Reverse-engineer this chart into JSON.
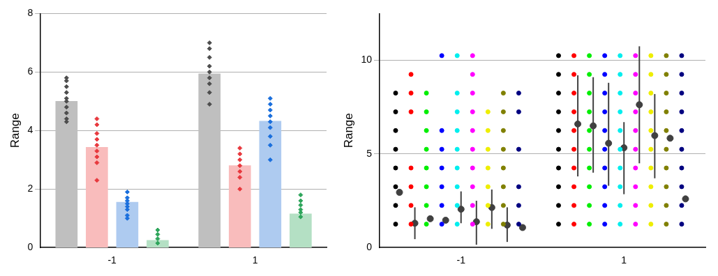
{
  "chart_data": [
    {
      "type": "bar",
      "ylabel": "Range",
      "categories": [
        "-1",
        "1"
      ],
      "ylim": [
        0,
        8
      ],
      "yticks": [
        0,
        2,
        4,
        6,
        8
      ],
      "grid": "y",
      "legend": false,
      "marker": "diamond",
      "series": [
        {
          "color": "#bfbfbf",
          "values": [
            5.0,
            5.94
          ]
        },
        {
          "color": "#f9bcbc",
          "values": [
            3.43,
            2.8
          ]
        },
        {
          "color": "#aecbf0",
          "values": [
            1.55,
            4.32
          ]
        },
        {
          "color": "#b4e0c4",
          "values": [
            0.25,
            1.15
          ]
        },
        {
          "type": "scatter",
          "color": "#4d4d4d",
          "x": [
            "-1",
            "-1",
            "-1",
            "-1",
            "-1",
            "-1",
            "-1",
            "-1",
            "-1",
            "-1",
            "1",
            "1",
            "1",
            "1",
            "1",
            "1",
            "1",
            "1",
            "1"
          ],
          "values": [
            5.8,
            5.7,
            5.5,
            5.3,
            5.1,
            5.0,
            4.8,
            4.6,
            4.4,
            4.3,
            7.0,
            6.8,
            6.5,
            6.2,
            6.0,
            5.8,
            5.6,
            5.3,
            4.9
          ]
        },
        {
          "type": "scatter",
          "color": "#e8383d",
          "x": [
            "-1",
            "-1",
            "-1",
            "-1",
            "-1",
            "-1",
            "-1",
            "-1",
            "-1",
            "1",
            "1",
            "1",
            "1",
            "1",
            "1",
            "1"
          ],
          "values": [
            4.4,
            4.2,
            3.9,
            3.7,
            3.5,
            3.3,
            3.1,
            2.9,
            2.3,
            3.4,
            3.2,
            3.0,
            2.8,
            2.6,
            2.4,
            2.0
          ]
        },
        {
          "type": "scatter",
          "color": "#1a6fdd",
          "x": [
            "-1",
            "-1",
            "-1",
            "-1",
            "-1",
            "-1",
            "-1",
            "-1",
            "1",
            "1",
            "1",
            "1",
            "1",
            "1",
            "1",
            "1",
            "1"
          ],
          "values": [
            1.9,
            1.7,
            1.6,
            1.5,
            1.4,
            1.3,
            1.1,
            1.0,
            5.1,
            4.9,
            4.7,
            4.5,
            4.3,
            4.1,
            3.8,
            3.5,
            3.0
          ]
        },
        {
          "type": "scatter",
          "color": "#2ea55b",
          "x": [
            "-1",
            "-1",
            "-1",
            "-1",
            "1",
            "1",
            "1",
            "1",
            "1",
            "1"
          ],
          "values": [
            0.6,
            0.45,
            0.3,
            0.15,
            1.8,
            1.6,
            1.45,
            1.3,
            1.2,
            1.05
          ]
        }
      ]
    },
    {
      "type": "scatter",
      "ylabel": "Range",
      "categories": [
        "-1",
        "1"
      ],
      "ylim": [
        0,
        12.5
      ],
      "yticks": [
        0,
        5,
        10
      ],
      "grid": "y",
      "legend": false,
      "marker": "circle",
      "series": [
        {
          "color": "#000000",
          "x": [
            "-1",
            "-1",
            "-1",
            "-1",
            "-1",
            "-1",
            "-1",
            "-1",
            "1",
            "1",
            "1",
            "1",
            "1",
            "1",
            "1",
            "1",
            "1",
            "1"
          ],
          "values": [
            1.25,
            2.25,
            3.25,
            4.25,
            5.25,
            6.25,
            7.25,
            8.25,
            1.25,
            2.25,
            3.25,
            4.25,
            5.25,
            6.25,
            7.25,
            8.25,
            9.25,
            10.25
          ]
        },
        {
          "color": "#ff0000",
          "x": [
            "-1",
            "-1",
            "-1",
            "-1",
            "-1",
            "-1",
            "-1",
            "1",
            "1",
            "1",
            "1",
            "1",
            "1",
            "1",
            "1",
            "1",
            "1"
          ],
          "values": [
            1.25,
            2.25,
            3.25,
            4.25,
            7.25,
            8.25,
            9.25,
            1.25,
            2.25,
            3.25,
            4.25,
            5.25,
            6.25,
            7.25,
            8.25,
            9.25,
            10.25
          ]
        },
        {
          "color": "#00ee00",
          "x": [
            "-1",
            "-1",
            "-1",
            "-1",
            "-1",
            "-1",
            "-1",
            "-1",
            "1",
            "1",
            "1",
            "1",
            "1",
            "1",
            "1",
            "1",
            "1",
            "1"
          ],
          "values": [
            1.25,
            2.25,
            3.25,
            4.25,
            5.25,
            6.25,
            7.25,
            8.25,
            1.25,
            2.25,
            3.25,
            4.25,
            5.25,
            6.25,
            7.25,
            8.25,
            9.25,
            10.25
          ]
        },
        {
          "color": "#0000ff",
          "x": [
            "-1",
            "-1",
            "-1",
            "-1",
            "-1",
            "-1",
            "-1",
            "1",
            "1",
            "1",
            "1",
            "1",
            "1",
            "1",
            "1",
            "1",
            "1"
          ],
          "values": [
            1.25,
            2.25,
            3.25,
            4.25,
            5.25,
            6.25,
            10.25,
            1.25,
            2.25,
            3.25,
            4.25,
            5.25,
            6.25,
            7.25,
            8.25,
            9.25,
            10.25
          ]
        },
        {
          "color": "#00eeee",
          "x": [
            "-1",
            "-1",
            "-1",
            "-1",
            "-1",
            "-1",
            "-1",
            "-1",
            "-1",
            "1",
            "1",
            "1",
            "1",
            "1",
            "1",
            "1",
            "1",
            "1",
            "1"
          ],
          "values": [
            1.25,
            2.25,
            3.25,
            4.25,
            5.25,
            6.25,
            7.25,
            8.25,
            10.25,
            1.25,
            2.25,
            3.25,
            4.25,
            5.25,
            6.25,
            7.25,
            8.25,
            9.25,
            10.25
          ]
        },
        {
          "color": "#ff00ff",
          "x": [
            "-1",
            "-1",
            "-1",
            "-1",
            "-1",
            "-1",
            "-1",
            "-1",
            "-1",
            "-1",
            "1",
            "1",
            "1",
            "1",
            "1",
            "1",
            "1",
            "1",
            "1",
            "1"
          ],
          "values": [
            1.25,
            2.25,
            3.25,
            4.25,
            5.25,
            6.25,
            7.25,
            8.25,
            9.25,
            10.25,
            1.25,
            2.25,
            3.25,
            4.25,
            5.25,
            6.25,
            7.25,
            8.25,
            9.25,
            10.25
          ]
        },
        {
          "color": "#eeee00",
          "x": [
            "-1",
            "-1",
            "-1",
            "-1",
            "-1",
            "-1",
            "-1",
            "1",
            "1",
            "1",
            "1",
            "1",
            "1",
            "1",
            "1",
            "1",
            "1"
          ],
          "values": [
            1.25,
            2.25,
            3.25,
            4.25,
            5.25,
            6.25,
            7.25,
            1.25,
            2.25,
            3.25,
            4.25,
            5.25,
            6.25,
            7.25,
            8.25,
            9.25,
            10.25
          ]
        },
        {
          "color": "#808000",
          "x": [
            "-1",
            "-1",
            "-1",
            "-1",
            "-1",
            "-1",
            "-1",
            "-1",
            "1",
            "1",
            "1",
            "1",
            "1",
            "1",
            "1",
            "1",
            "1",
            "1"
          ],
          "values": [
            1.25,
            2.25,
            3.25,
            4.25,
            5.25,
            6.25,
            7.25,
            8.25,
            1.25,
            2.25,
            3.25,
            4.25,
            5.25,
            6.25,
            7.25,
            8.25,
            9.25,
            10.25
          ]
        },
        {
          "color": "#000080",
          "x": [
            "-1",
            "-1",
            "-1",
            "-1",
            "-1",
            "-1",
            "1",
            "1",
            "1",
            "1",
            "1",
            "1",
            "1",
            "1",
            "1",
            "1"
          ],
          "values": [
            1.25,
            2.25,
            3.25,
            5.25,
            7.25,
            8.25,
            1.25,
            2.25,
            3.25,
            4.25,
            5.25,
            6.25,
            7.25,
            8.25,
            9.25,
            10.25
          ]
        },
        {
          "color": "#404040",
          "values": [
            2.95,
            null
          ],
          "errors": [
            null,
            null
          ]
        },
        {
          "color": "#404040",
          "values": [
            1.3,
            6.6
          ],
          "errors": [
            [
              0.45,
              2.15
            ],
            [
              3.8,
              9.2
            ]
          ]
        },
        {
          "color": "#404040",
          "values": [
            1.54,
            6.5
          ],
          "errors": [
            null,
            [
              4.0,
              9.1
            ]
          ]
        },
        {
          "color": "#404040",
          "values": [
            1.46,
            5.57
          ],
          "errors": [
            null,
            [
              3.3,
              8.8
            ]
          ]
        },
        {
          "color": "#404040",
          "values": [
            2.05,
            5.33
          ],
          "errors": [
            [
              1.3,
              3.0
            ],
            [
              2.85,
              6.7
            ]
          ]
        },
        {
          "color": "#404040",
          "values": [
            1.38,
            7.63
          ],
          "errors": [
            [
              0.15,
              2.5
            ],
            [
              4.5,
              10.75
            ]
          ]
        },
        {
          "color": "#404040",
          "values": [
            2.14,
            5.98
          ],
          "errors": [
            [
              1.0,
              3.1
            ],
            [
              3.7,
              8.2
            ]
          ]
        },
        {
          "color": "#404040",
          "values": [
            1.2,
            5.84
          ],
          "errors": [
            [
              0.3,
              2.15
            ],
            null
          ]
        },
        {
          "color": "#404040",
          "values": [
            1.07,
            2.6
          ],
          "errors": [
            null,
            null
          ]
        }
      ]
    }
  ]
}
